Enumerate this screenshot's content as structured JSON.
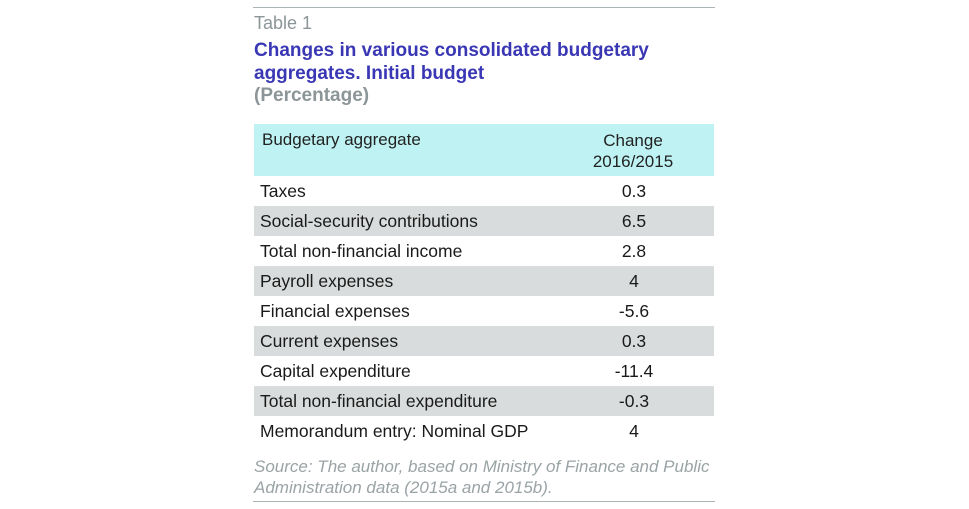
{
  "label": "Table 1",
  "title": "Changes in various consolidated budgetary aggregates. Initial budget",
  "subtitle": "(Percentage)",
  "table": {
    "header_left": "Budgetary aggregate",
    "header_right_line1": "Change",
    "header_right_line2": "2016/2015",
    "rows": [
      {
        "name": "Taxes",
        "value": "0.3"
      },
      {
        "name": "Social-security contributions",
        "value": "6.5"
      },
      {
        "name": "Total non-financial income",
        "value": "2.8"
      },
      {
        "name": "Payroll expenses",
        "value": "4"
      },
      {
        "name": "Financial expenses",
        "value": "-5.6"
      },
      {
        "name": "Current expenses",
        "value": "0.3"
      },
      {
        "name": "Capital expenditure",
        "value": "-11.4"
      },
      {
        "name": "Total non-financial expenditure",
        "value": "-0.3"
      },
      {
        "name": "Memorandum entry: Nominal GDP",
        "value": "4"
      }
    ]
  },
  "source": "Source: The author, based on Ministry of Finance and Public Administration data (2015a and 2015b).",
  "colors": {
    "header_bg": "#bff3f3",
    "shaded_row": "#d9dcdc",
    "title": "#3a37b5",
    "muted": "#8c9597"
  }
}
